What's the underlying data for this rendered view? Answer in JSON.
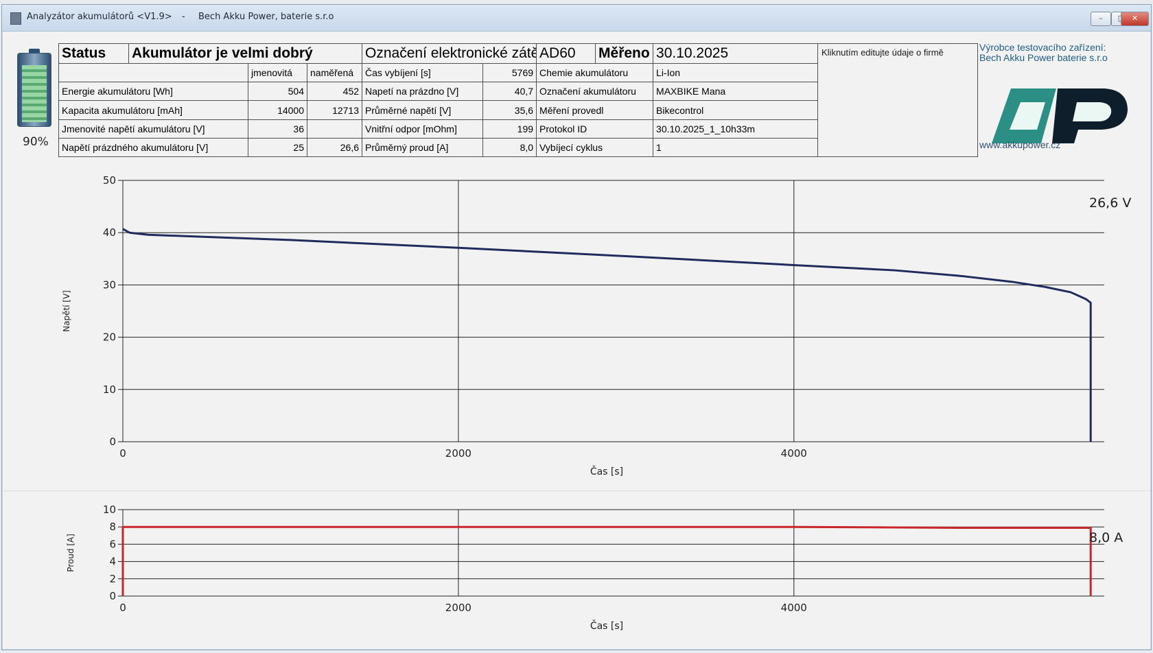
{
  "window": {
    "title": "Analyzátor akumulátorů <V1.9>",
    "separator": "-",
    "company": "Bech Akku Power, baterie s.r.o",
    "buttons": {
      "minimize": "–",
      "maximize": "□",
      "close": "✕"
    }
  },
  "battery": {
    "level": 0.9,
    "percent_label": "90%"
  },
  "info": {
    "status_label": "Status",
    "status_value": "Akumulátor je velmi dobrý",
    "load_label": "Označení elektronické zátěže",
    "load_value": "AD60",
    "measured_label": "Měřeno dne",
    "measured_value": "30.10.2025",
    "header_nominal": "jmenovitá",
    "header_measured": "naměřená",
    "rows": [
      {
        "label": "Energie akumulátoru [Wh]",
        "nominal": "504",
        "measured": "452",
        "label2": "Čas vybíjení [s]",
        "value2": "5769",
        "label3": "Chemie akumulátoru",
        "value3": "Li-Ion"
      },
      {
        "label": "Kapacita akumulátoru [mAh]",
        "nominal": "14000",
        "measured": "12713",
        "label2": "Napetí na prázdno [V]",
        "value2": "40,7",
        "label3": "Označení akumulátoru",
        "value3": "MAXBIKE Mana"
      },
      {
        "label": "Jmenovité napětí akumulátoru [V]",
        "nominal": "36",
        "measured": "",
        "label2": "Průměrné napětí [V]",
        "value2": "35,6",
        "label3": "Měření provedl",
        "value3": "Bikecontrol"
      },
      {
        "label": "Napětí prázdného akumulátoru [V]",
        "nominal": "25",
        "measured": "26,6",
        "label2": "Vnitřní odpor [mOhm]",
        "value2": "199",
        "label3": "Protokol ID",
        "value3": "30.10.2025_1_10h33m"
      },
      {
        "label": "",
        "nominal": "",
        "measured": "",
        "label2": "Průměrný proud [A]",
        "value2": "8,0",
        "label3": "Vybíjecí cyklus",
        "value3": "1"
      }
    ],
    "company_hint": "Kliknutím editujte údaje o firmě"
  },
  "maker": {
    "title": "Výrobce testovacího zařízení:",
    "name": "Bech Akku Power baterie s.r.o",
    "url": "www.akkupower.cz",
    "logo_text": "AP"
  },
  "chart_data": [
    {
      "type": "line",
      "xlabel": "Čas [s]",
      "ylabel": "Napětí [V]",
      "xlim": [
        0,
        5850
      ],
      "ylim": [
        0,
        50
      ],
      "xticks": [
        0,
        2000,
        4000
      ],
      "yticks": [
        0,
        10,
        20,
        30,
        40,
        50
      ],
      "grid": true,
      "series": [
        {
          "color": "#1f2b5c",
          "x": [
            0,
            40,
            150,
            400,
            1000,
            2000,
            3000,
            4000,
            4600,
            5000,
            5300,
            5500,
            5650,
            5740,
            5769,
            5769
          ],
          "y": [
            40.7,
            40.0,
            39.6,
            39.3,
            38.6,
            37.1,
            35.5,
            33.8,
            32.8,
            31.7,
            30.6,
            29.6,
            28.6,
            27.3,
            26.6,
            0
          ]
        }
      ],
      "current_value": "26,6 V"
    },
    {
      "type": "line",
      "xlabel": "Čas [s]",
      "ylabel": "Proud [A]",
      "xlim": [
        0,
        5850
      ],
      "ylim": [
        0,
        10
      ],
      "xticks": [
        0,
        2000,
        4000
      ],
      "yticks": [
        0,
        2,
        4,
        6,
        8,
        10
      ],
      "grid": true,
      "series": [
        {
          "color": "#c8262a",
          "x": [
            0,
            0,
            1000,
            2000,
            3000,
            4000,
            5000,
            5769,
            5769
          ],
          "y": [
            0,
            8.0,
            8.0,
            8.0,
            8.0,
            8.0,
            7.9,
            7.9,
            0
          ]
        }
      ],
      "current_value": "8,0 A"
    }
  ]
}
